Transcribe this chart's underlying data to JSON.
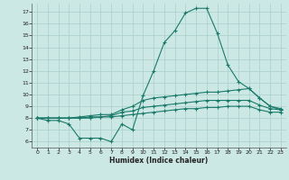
{
  "xlabel": "Humidex (Indice chaleur)",
  "xlim": [
    -0.5,
    23.5
  ],
  "ylim": [
    5.5,
    17.7
  ],
  "yticks": [
    6,
    7,
    8,
    9,
    10,
    11,
    12,
    13,
    14,
    15,
    16,
    17
  ],
  "xticks": [
    0,
    1,
    2,
    3,
    4,
    5,
    6,
    7,
    8,
    9,
    10,
    11,
    12,
    13,
    14,
    15,
    16,
    17,
    18,
    19,
    20,
    21,
    22,
    23
  ],
  "bg_color": "#cce8e4",
  "grid_color": "#aacfcb",
  "line_color": "#1a7a6a",
  "line1_x": [
    0,
    1,
    2,
    3,
    4,
    5,
    6,
    7,
    8,
    9,
    10,
    11,
    12,
    13,
    14,
    15,
    16,
    17,
    18,
    19,
    20,
    21,
    22,
    23
  ],
  "line1_y": [
    8.0,
    7.8,
    7.8,
    7.5,
    6.3,
    6.3,
    6.3,
    6.0,
    7.5,
    7.0,
    9.9,
    12.0,
    14.4,
    15.4,
    16.9,
    17.3,
    17.3,
    15.2,
    12.5,
    11.1,
    10.5,
    9.7,
    9.0,
    8.7
  ],
  "line2_x": [
    0,
    1,
    2,
    3,
    4,
    5,
    6,
    7,
    8,
    9,
    10,
    11,
    12,
    13,
    14,
    15,
    16,
    17,
    18,
    19,
    20,
    21,
    22,
    23
  ],
  "line2_y": [
    8.0,
    8.0,
    8.0,
    8.0,
    8.1,
    8.2,
    8.3,
    8.3,
    8.7,
    9.0,
    9.5,
    9.7,
    9.8,
    9.9,
    10.0,
    10.1,
    10.2,
    10.2,
    10.3,
    10.4,
    10.5,
    9.7,
    9.0,
    8.8
  ],
  "line3_x": [
    0,
    1,
    2,
    3,
    4,
    5,
    6,
    7,
    8,
    9,
    10,
    11,
    12,
    13,
    14,
    15,
    16,
    17,
    18,
    19,
    20,
    21,
    22,
    23
  ],
  "line3_y": [
    8.0,
    8.0,
    8.0,
    8.0,
    8.0,
    8.1,
    8.1,
    8.2,
    8.5,
    8.6,
    8.9,
    9.0,
    9.1,
    9.2,
    9.3,
    9.4,
    9.5,
    9.5,
    9.5,
    9.5,
    9.5,
    9.1,
    8.8,
    8.7
  ],
  "line4_x": [
    0,
    1,
    2,
    3,
    4,
    5,
    6,
    7,
    8,
    9,
    10,
    11,
    12,
    13,
    14,
    15,
    16,
    17,
    18,
    19,
    20,
    21,
    22,
    23
  ],
  "line4_y": [
    8.0,
    8.0,
    8.0,
    8.0,
    8.0,
    8.0,
    8.1,
    8.1,
    8.2,
    8.3,
    8.4,
    8.5,
    8.6,
    8.7,
    8.8,
    8.8,
    8.9,
    8.9,
    9.0,
    9.0,
    9.0,
    8.7,
    8.5,
    8.5
  ]
}
